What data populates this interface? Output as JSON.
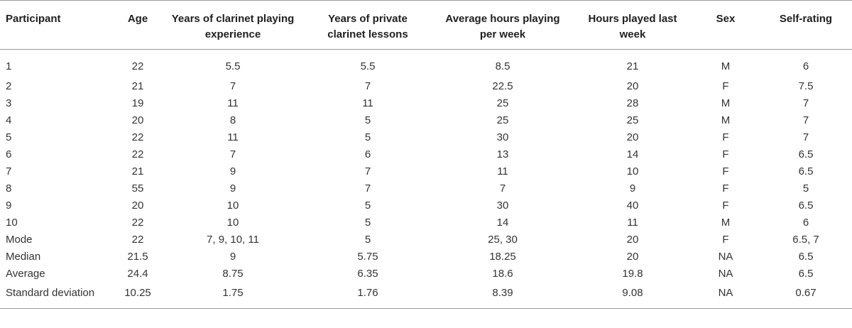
{
  "table": {
    "headers": [
      "Participant",
      "Age",
      "Years of clarinet playing experience",
      "Years of private clarinet lessons",
      "Average hours playing per week",
      "Hours played last week",
      "Sex",
      "Self-rating"
    ],
    "rows": [
      [
        "1",
        "22",
        "5.5",
        "5.5",
        "8.5",
        "21",
        "M",
        "6"
      ],
      [
        "2",
        "21",
        "7",
        "7",
        "22.5",
        "20",
        "F",
        "7.5"
      ],
      [
        "3",
        "19",
        "11",
        "11",
        "25",
        "28",
        "M",
        "7"
      ],
      [
        "4",
        "20",
        "8",
        "5",
        "25",
        "25",
        "M",
        "7"
      ],
      [
        "5",
        "22",
        "11",
        "5",
        "30",
        "20",
        "F",
        "7"
      ],
      [
        "6",
        "22",
        "7",
        "6",
        "13",
        "14",
        "F",
        "6.5"
      ],
      [
        "7",
        "21",
        "9",
        "7",
        "11",
        "10",
        "F",
        "6.5"
      ],
      [
        "8",
        "55",
        "9",
        "7",
        "7",
        "9",
        "F",
        "5"
      ],
      [
        "9",
        "20",
        "10",
        "5",
        "30",
        "40",
        "F",
        "6.5"
      ],
      [
        "10",
        "22",
        "10",
        "5",
        "14",
        "11",
        "M",
        "6"
      ],
      [
        "Mode",
        "22",
        "7, 9, 10, 11",
        "5",
        "25, 30",
        "20",
        "F",
        "6.5, 7"
      ],
      [
        "Median",
        "21.5",
        "9",
        "5.75",
        "18.25",
        "20",
        "NA",
        "6.5"
      ],
      [
        "Average",
        "24.4",
        "8.75",
        "6.35",
        "18.6",
        "19.8",
        "NA",
        "6.5"
      ],
      [
        "Standard deviation",
        "10.25",
        "1.75",
        "1.76",
        "8.39",
        "9.08",
        "NA",
        "0.67"
      ]
    ]
  }
}
